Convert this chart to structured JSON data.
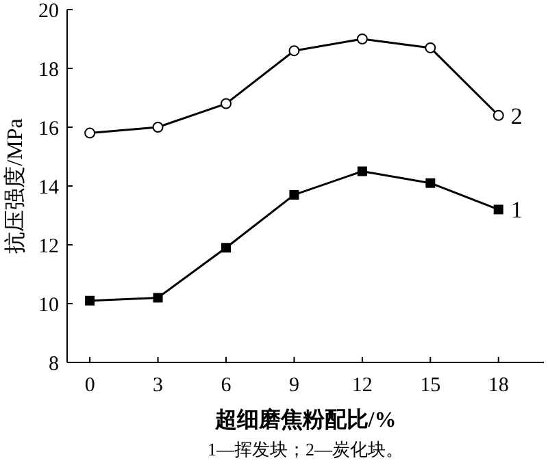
{
  "chart_data": {
    "type": "line",
    "xlabel": "超细磨焦粉配比/%",
    "ylabel": "抗压强度/MPa",
    "x": [
      0,
      3,
      6,
      9,
      12,
      15,
      18
    ],
    "series": [
      {
        "name": "1",
        "color": "#000000",
        "values": [
          10.1,
          10.2,
          11.9,
          13.7,
          14.5,
          14.1,
          13.2
        ],
        "marker": "square"
      },
      {
        "name": "2",
        "color": "#000000",
        "values": [
          15.8,
          16.0,
          16.8,
          18.6,
          19.0,
          18.7,
          16.4
        ],
        "marker": "circle"
      }
    ],
    "xlim": [
      -1,
      20
    ],
    "ylim": [
      8,
      20
    ],
    "xticks": [
      0,
      3,
      6,
      9,
      12,
      15,
      18
    ],
    "yticks": [
      8,
      10,
      12,
      14,
      16,
      18,
      20
    ],
    "grid": false,
    "line_style": "solid",
    "annotations": [
      "1—挥发块；2—炭化块。"
    ]
  }
}
